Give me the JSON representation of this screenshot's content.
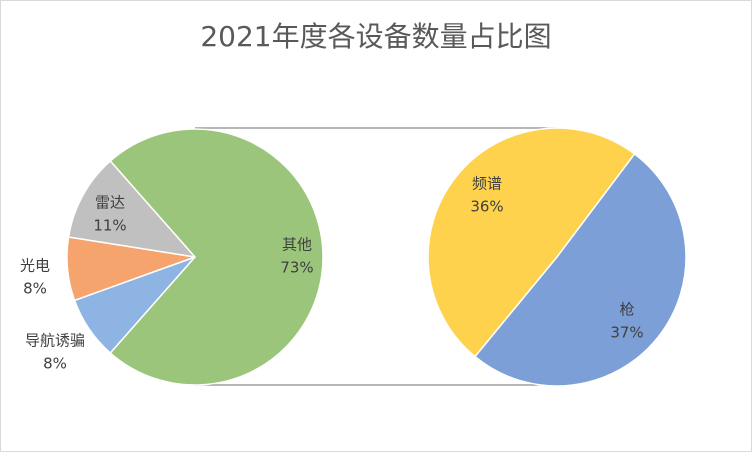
{
  "chart_data": {
    "type": "pie-of-pie",
    "title": "2021年度各设备数量占比图",
    "categories": [
      "导航诱骗",
      "光电",
      "雷达",
      "其他"
    ],
    "values": [
      8,
      8,
      11,
      73
    ],
    "value_labels": [
      "8%",
      "8%",
      "11%",
      "73%"
    ],
    "colors": [
      "#8db4e2",
      "#f4a46c",
      "#c0c0c0",
      "#9bc57a"
    ],
    "secondary": {
      "categories": [
        "频谱",
        "枪"
      ],
      "values": [
        36,
        37
      ],
      "value_labels": [
        "36%",
        "37%"
      ],
      "colors": [
        "#ffd24d",
        "#7b9fd6"
      ]
    }
  }
}
